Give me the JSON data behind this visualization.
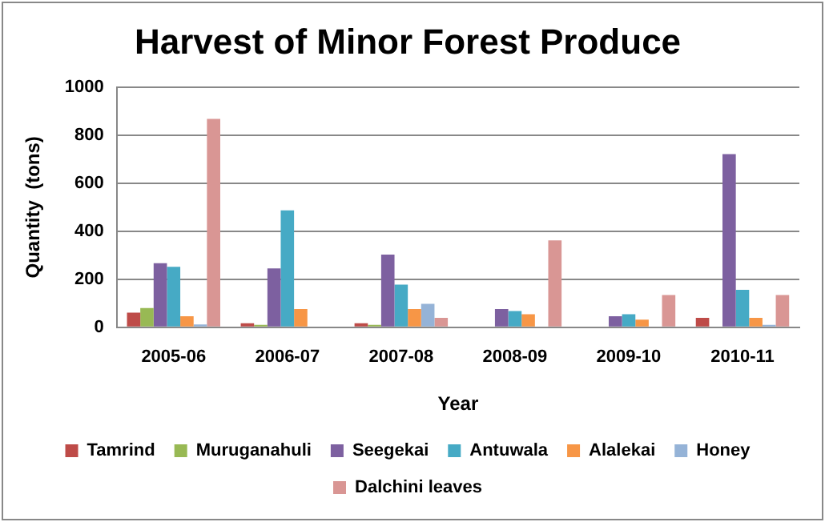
{
  "chart_data": {
    "type": "bar",
    "title": "Harvest of Minor Forest Produce",
    "xlabel": "Year",
    "ylabel": "Quantity  (tons)",
    "categories": [
      "2005-06",
      "2006-07",
      "2007-08",
      "2008-09",
      "2009-10",
      "2010-11"
    ],
    "series": [
      {
        "name": "Tamrind",
        "color": "#be4b48",
        "values": [
          61,
          17,
          17,
          null,
          null,
          39
        ]
      },
      {
        "name": "Muruganahuli",
        "color": "#98b954",
        "values": [
          80,
          10,
          10,
          null,
          null,
          null
        ]
      },
      {
        "name": "Seegekai",
        "color": "#7d60a0",
        "values": [
          267,
          245,
          303,
          76,
          46,
          721
        ]
      },
      {
        "name": "Antuwala",
        "color": "#46aac5",
        "values": [
          252,
          487,
          178,
          68,
          54,
          156
        ]
      },
      {
        "name": "Alalekai",
        "color": "#f79646",
        "values": [
          46,
          76,
          76,
          54,
          32,
          39
        ]
      },
      {
        "name": "Honey",
        "color": "#95b3d7",
        "values": [
          12,
          null,
          98,
          null,
          null,
          10
        ]
      },
      {
        "name": "Dalchini leaves",
        "color": "#d99694",
        "values": [
          868,
          null,
          39,
          362,
          134,
          134
        ]
      }
    ],
    "ylim": [
      0,
      1000
    ],
    "yticks": [
      0,
      200,
      400,
      600,
      800,
      1000
    ],
    "grid": "y",
    "legend": "bottom"
  }
}
